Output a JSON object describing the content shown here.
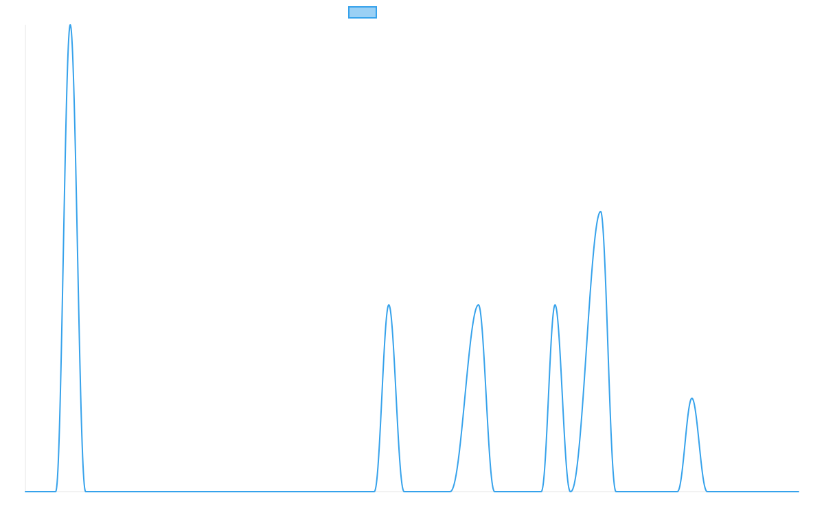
{
  "chart_data": {
    "type": "line",
    "title": "",
    "xlabel": "",
    "ylabel": "",
    "xlim": [
      0,
      1000
    ],
    "ylim": [
      0,
      1
    ],
    "grid": false,
    "legend_position": "top-center",
    "series": [
      {
        "color": "#36a2eb",
        "fill_color": "#9ad0f5",
        "peaks": [
          {
            "x0": 39,
            "x1": 78,
            "center": 58,
            "height": 1.0
          },
          {
            "x0": 451,
            "x1": 490,
            "center": 470,
            "height": 0.4
          },
          {
            "x0": 549,
            "x1": 607,
            "center": 586,
            "height": 0.4
          },
          {
            "x0": 667,
            "x1": 705,
            "center": 685,
            "height": 0.4
          },
          {
            "x0": 705,
            "x1": 764,
            "center": 744,
            "height": 0.6
          },
          {
            "x0": 843,
            "x1": 882,
            "center": 862,
            "height": 0.2
          }
        ]
      }
    ]
  }
}
